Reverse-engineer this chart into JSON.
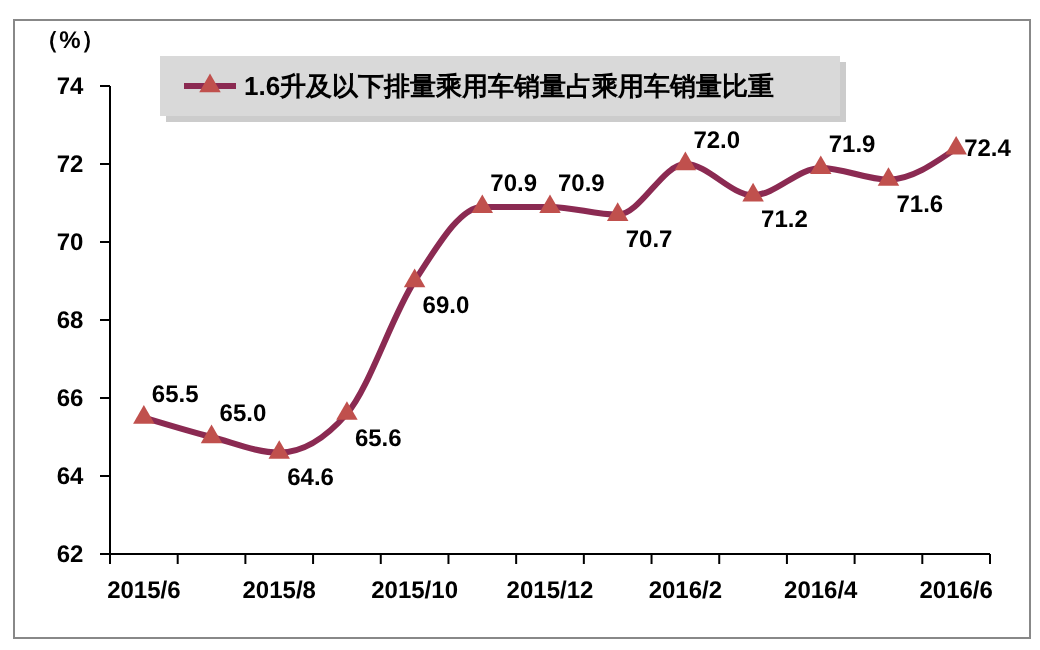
{
  "chart_data": {
    "type": "line",
    "ylabel": "（%）",
    "categories": [
      "2015/6",
      null,
      "2015/8",
      null,
      "2015/10",
      null,
      "2015/12",
      null,
      "2016/2",
      null,
      "2016/4",
      null,
      "2016/6"
    ],
    "series": [
      {
        "name": "1.6升及以下排量乘用车销量占乘用车销量比重",
        "color": "#8b2a52",
        "values": [
          65.5,
          65.0,
          64.6,
          65.6,
          69.0,
          70.9,
          70.9,
          70.7,
          72.0,
          71.2,
          71.9,
          71.6,
          72.4
        ],
        "value_labels": [
          "65.5",
          "65.0",
          "64.6",
          "65.6",
          "69.0",
          "70.9",
          "70.9",
          "70.7",
          "72.0",
          "71.2",
          "71.9",
          "71.6",
          "72.4"
        ]
      }
    ],
    "ylim": [
      62,
      74
    ],
    "yticks": [
      62,
      64,
      66,
      68,
      70,
      72,
      74
    ],
    "legend": "top",
    "marker": "triangle",
    "line_style": "solid",
    "grid": false
  }
}
